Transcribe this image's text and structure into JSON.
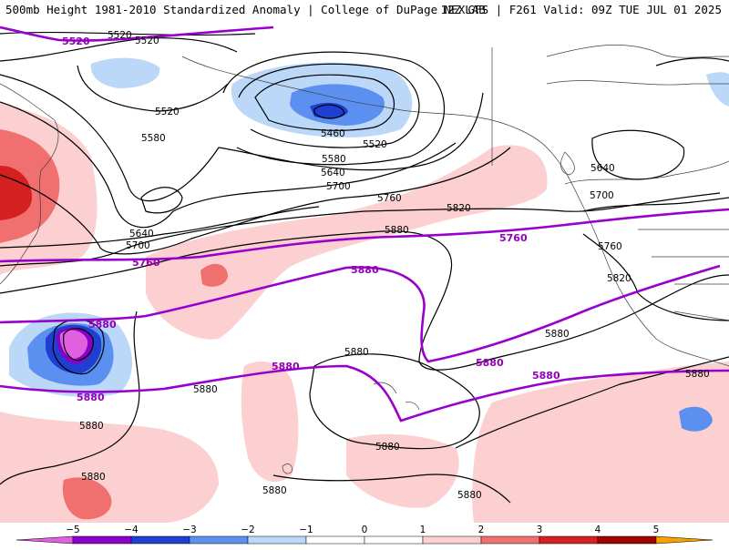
{
  "header": {
    "title": "500mb Height 1981-2010 Standardized Anomaly | College of DuPage NEXLAB",
    "run_info": "12Z GFS | F261 Valid: 09Z TUE JUL 01 2025"
  },
  "colors": {
    "anom_neg_5": "#e060e0",
    "anom_neg_4": "#8a00c8",
    "anom_neg_3": "#1f3fd0",
    "anom_neg_2": "#5b8ff0",
    "anom_neg_1": "#bcd8f8",
    "anom_pos_1": "#fcd0d0",
    "anom_pos_2": "#f07070",
    "anom_pos_3": "#d42020",
    "anom_pos_4": "#a00000",
    "anom_pos_5": "#f8a000",
    "contour_black": "#000000",
    "contour_purple": "#9900cc"
  },
  "map": {
    "contour_labels_black": [
      {
        "text": "5520"
      },
      {
        "text": "5520"
      },
      {
        "text": "5520"
      },
      {
        "text": "5520"
      },
      {
        "text": "5460"
      },
      {
        "text": "5580"
      },
      {
        "text": "5580"
      },
      {
        "text": "5640"
      },
      {
        "text": "5640"
      },
      {
        "text": "5640"
      },
      {
        "text": "5700"
      },
      {
        "text": "5700"
      },
      {
        "text": "5700"
      },
      {
        "text": "5760"
      },
      {
        "text": "5760"
      },
      {
        "text": "5820"
      },
      {
        "text": "5820"
      },
      {
        "text": "5880"
      },
      {
        "text": "5880"
      },
      {
        "text": "5880"
      },
      {
        "text": "5880"
      },
      {
        "text": "5880"
      },
      {
        "text": "5880"
      },
      {
        "text": "5880"
      },
      {
        "text": "5880"
      },
      {
        "text": "5880"
      },
      {
        "text": "5880"
      }
    ],
    "contour_labels_purple": [
      {
        "text": "5520"
      },
      {
        "text": "5760"
      },
      {
        "text": "5760"
      },
      {
        "text": "5880"
      },
      {
        "text": "5880"
      },
      {
        "text": "5880"
      },
      {
        "text": "5880"
      },
      {
        "text": "5880"
      },
      {
        "text": "5880"
      }
    ]
  },
  "colorbar": {
    "ticks": [
      "−5",
      "−4",
      "−3",
      "−2",
      "−1",
      "0",
      "1",
      "2",
      "3",
      "4",
      "5"
    ]
  }
}
